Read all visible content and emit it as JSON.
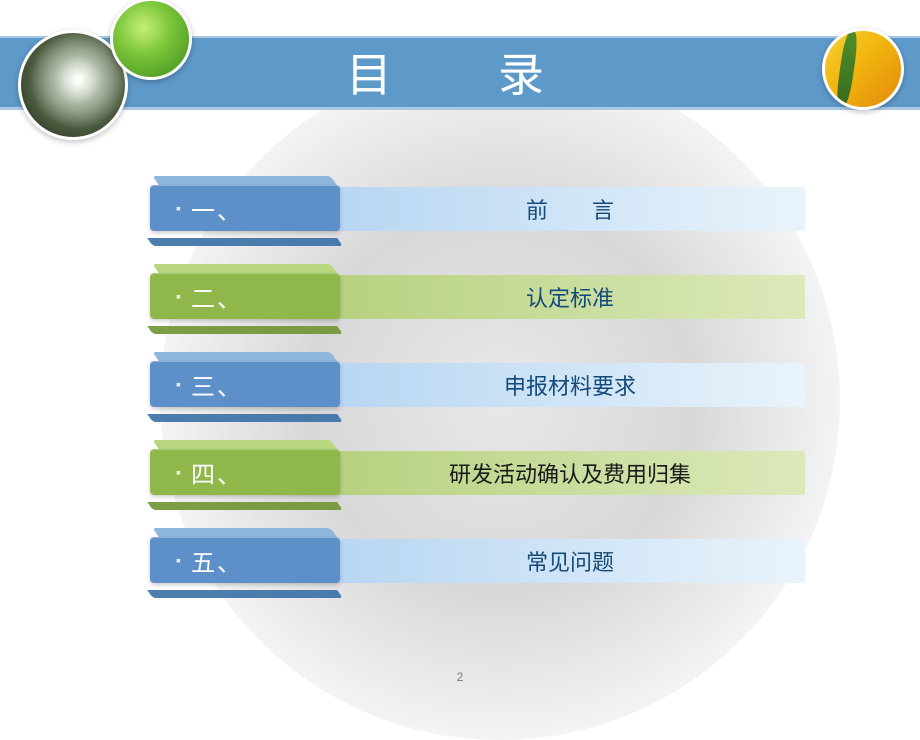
{
  "title": "目　录",
  "title_color": "#ffffff",
  "band_color": "#5d99c9",
  "band_border": "#a9c9e6",
  "page_number": "2",
  "rows": [
    {
      "num": "一、",
      "text": "前　　言",
      "tab_face": "#5d8fc8",
      "tab_top": "#8fb7de",
      "tab_side": "#3a6fa5",
      "bar_bg_from": "#b7d6f2",
      "bar_bg_to": "#e9f3fb",
      "bar_text_color": "#124a7a"
    },
    {
      "num": "二、",
      "text": "认定标准",
      "tab_face": "#8fb74a",
      "tab_top": "#b8d77f",
      "tab_side": "#6f9334",
      "bar_bg_from": "#b7d17f",
      "bar_bg_to": "#dce9bb",
      "bar_text_color": "#124a7a"
    },
    {
      "num": "三、",
      "text": "申报材料要求",
      "tab_face": "#5d8fc8",
      "tab_top": "#8fb7de",
      "tab_side": "#3a6fa5",
      "bar_bg_from": "#b7d6f2",
      "bar_bg_to": "#e9f3fb",
      "bar_text_color": "#124a7a"
    },
    {
      "num": "四、",
      "text": "研发活动确认及费用归集",
      "tab_face": "#8fb74a",
      "tab_top": "#b8d77f",
      "tab_side": "#6f9334",
      "bar_bg_from": "#b7d17f",
      "bar_bg_to": "#dce9bb",
      "bar_text_color": "#1a1a1a"
    },
    {
      "num": "五、",
      "text": "常见问题",
      "tab_face": "#5d8fc8",
      "tab_top": "#8fb7de",
      "tab_side": "#3a6fa5",
      "bar_bg_from": "#b7d6f2",
      "bar_bg_to": "#e9f3fb",
      "bar_text_color": "#124a7a"
    }
  ]
}
